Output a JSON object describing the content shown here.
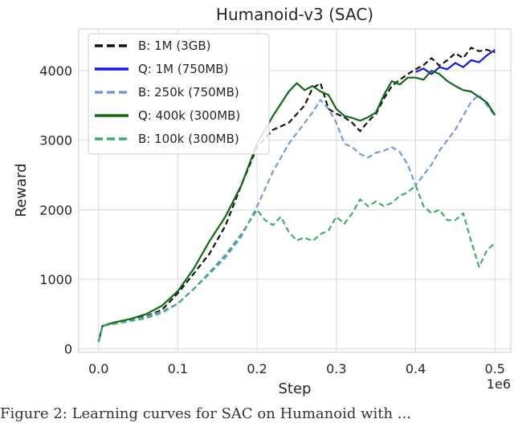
{
  "caption": "Figure 2: Learning curves for SAC on Humanoid with ...",
  "chart_data": {
    "type": "line",
    "title": "Humanoid-v3 (SAC)",
    "xlabel": "Step",
    "ylabel": "Reward",
    "x_multiplier_label": "1e6",
    "xlim": [
      -0.025,
      0.52
    ],
    "ylim": [
      -50,
      4600
    ],
    "xticks": [
      0.0,
      0.1,
      0.2,
      0.3,
      0.4,
      0.5
    ],
    "xtick_labels": [
      "0.0",
      "0.1",
      "0.2",
      "0.3",
      "0.4",
      "0.5"
    ],
    "yticks": [
      0,
      1000,
      2000,
      3000,
      4000
    ],
    "ytick_labels": [
      "0",
      "1000",
      "2000",
      "3000",
      "4000"
    ],
    "grid": true,
    "legend_position": "top-left",
    "series": [
      {
        "name": "B: 1M (3GB)",
        "color": "#111111",
        "dash": true,
        "points": [
          [
            0.0,
            100
          ],
          [
            0.005,
            330
          ],
          [
            0.02,
            380
          ],
          [
            0.04,
            420
          ],
          [
            0.06,
            470
          ],
          [
            0.08,
            560
          ],
          [
            0.1,
            800
          ],
          [
            0.12,
            1080
          ],
          [
            0.14,
            1370
          ],
          [
            0.16,
            1770
          ],
          [
            0.18,
            2350
          ],
          [
            0.2,
            2900
          ],
          [
            0.22,
            3150
          ],
          [
            0.24,
            3250
          ],
          [
            0.26,
            3500
          ],
          [
            0.27,
            3750
          ],
          [
            0.28,
            3820
          ],
          [
            0.29,
            3450
          ],
          [
            0.3,
            3380
          ],
          [
            0.31,
            3330
          ],
          [
            0.32,
            3250
          ],
          [
            0.33,
            3130
          ],
          [
            0.34,
            3270
          ],
          [
            0.35,
            3380
          ],
          [
            0.36,
            3600
          ],
          [
            0.37,
            3780
          ],
          [
            0.38,
            3870
          ],
          [
            0.39,
            3950
          ],
          [
            0.4,
            4020
          ],
          [
            0.41,
            4080
          ],
          [
            0.42,
            4180
          ],
          [
            0.43,
            4070
          ],
          [
            0.44,
            4150
          ],
          [
            0.45,
            4250
          ],
          [
            0.46,
            4180
          ],
          [
            0.47,
            4330
          ],
          [
            0.48,
            4280
          ],
          [
            0.49,
            4300
          ],
          [
            0.5,
            4260
          ]
        ]
      },
      {
        "name": "Q: 1M (750MB)",
        "color": "#1515e6",
        "dash": false,
        "points": [
          [
            0.4,
            3980
          ],
          [
            0.41,
            4030
          ],
          [
            0.42,
            3950
          ],
          [
            0.43,
            4050
          ],
          [
            0.44,
            4020
          ],
          [
            0.45,
            4110
          ],
          [
            0.46,
            4050
          ],
          [
            0.47,
            4150
          ],
          [
            0.48,
            4120
          ],
          [
            0.49,
            4220
          ],
          [
            0.5,
            4300
          ]
        ]
      },
      {
        "name": "B: 250k (750MB)",
        "color": "#6f9be6",
        "dash": true,
        "points": [
          [
            0.0,
            100
          ],
          [
            0.005,
            330
          ],
          [
            0.02,
            370
          ],
          [
            0.04,
            410
          ],
          [
            0.06,
            460
          ],
          [
            0.08,
            540
          ],
          [
            0.1,
            650
          ],
          [
            0.12,
            860
          ],
          [
            0.14,
            1080
          ],
          [
            0.16,
            1310
          ],
          [
            0.18,
            1610
          ],
          [
            0.2,
            2050
          ],
          [
            0.22,
            2550
          ],
          [
            0.24,
            2950
          ],
          [
            0.26,
            3250
          ],
          [
            0.27,
            3400
          ],
          [
            0.28,
            3580
          ],
          [
            0.29,
            3450
          ],
          [
            0.3,
            3250
          ],
          [
            0.31,
            2950
          ],
          [
            0.32,
            2900
          ],
          [
            0.33,
            2800
          ],
          [
            0.34,
            2750
          ],
          [
            0.35,
            2820
          ],
          [
            0.36,
            2850
          ],
          [
            0.37,
            2900
          ],
          [
            0.38,
            2830
          ],
          [
            0.39,
            2650
          ],
          [
            0.4,
            2350
          ],
          [
            0.41,
            2500
          ],
          [
            0.42,
            2650
          ],
          [
            0.43,
            2850
          ],
          [
            0.44,
            3000
          ],
          [
            0.45,
            3150
          ],
          [
            0.46,
            3350
          ],
          [
            0.47,
            3550
          ],
          [
            0.48,
            3650
          ],
          [
            0.49,
            3500
          ],
          [
            0.5,
            3350
          ]
        ]
      },
      {
        "name": "Q: 400k (300MB)",
        "color": "#0e6a10",
        "dash": false,
        "points": [
          [
            0.0,
            100
          ],
          [
            0.005,
            330
          ],
          [
            0.02,
            380
          ],
          [
            0.04,
            430
          ],
          [
            0.06,
            500
          ],
          [
            0.08,
            620
          ],
          [
            0.1,
            830
          ],
          [
            0.12,
            1150
          ],
          [
            0.14,
            1550
          ],
          [
            0.16,
            1900
          ],
          [
            0.18,
            2350
          ],
          [
            0.2,
            2950
          ],
          [
            0.22,
            3350
          ],
          [
            0.24,
            3700
          ],
          [
            0.25,
            3820
          ],
          [
            0.26,
            3720
          ],
          [
            0.27,
            3780
          ],
          [
            0.28,
            3700
          ],
          [
            0.29,
            3650
          ],
          [
            0.3,
            3450
          ],
          [
            0.31,
            3350
          ],
          [
            0.32,
            3320
          ],
          [
            0.33,
            3280
          ],
          [
            0.34,
            3330
          ],
          [
            0.35,
            3400
          ],
          [
            0.36,
            3650
          ],
          [
            0.37,
            3850
          ],
          [
            0.38,
            3800
          ],
          [
            0.39,
            3900
          ],
          [
            0.4,
            3900
          ],
          [
            0.41,
            3870
          ],
          [
            0.42,
            4000
          ],
          [
            0.43,
            3950
          ],
          [
            0.44,
            3850
          ],
          [
            0.45,
            3780
          ],
          [
            0.46,
            3720
          ],
          [
            0.47,
            3700
          ],
          [
            0.48,
            3620
          ],
          [
            0.49,
            3540
          ],
          [
            0.5,
            3360
          ]
        ]
      },
      {
        "name": "B: 100k (300MB)",
        "color": "#41ad6b",
        "dash": true,
        "points": [
          [
            0.0,
            100
          ],
          [
            0.005,
            330
          ],
          [
            0.02,
            360
          ],
          [
            0.04,
            400
          ],
          [
            0.06,
            440
          ],
          [
            0.08,
            520
          ],
          [
            0.1,
            650
          ],
          [
            0.12,
            860
          ],
          [
            0.14,
            1100
          ],
          [
            0.16,
            1350
          ],
          [
            0.18,
            1650
          ],
          [
            0.2,
            2000
          ],
          [
            0.21,
            1850
          ],
          [
            0.22,
            1780
          ],
          [
            0.23,
            1900
          ],
          [
            0.24,
            1680
          ],
          [
            0.25,
            1560
          ],
          [
            0.26,
            1600
          ],
          [
            0.27,
            1550
          ],
          [
            0.28,
            1650
          ],
          [
            0.29,
            1700
          ],
          [
            0.3,
            1900
          ],
          [
            0.31,
            1800
          ],
          [
            0.32,
            1950
          ],
          [
            0.33,
            2150
          ],
          [
            0.34,
            2050
          ],
          [
            0.35,
            2120
          ],
          [
            0.36,
            2050
          ],
          [
            0.37,
            2100
          ],
          [
            0.38,
            2200
          ],
          [
            0.39,
            2250
          ],
          [
            0.4,
            2350
          ],
          [
            0.41,
            2050
          ],
          [
            0.42,
            1950
          ],
          [
            0.43,
            2000
          ],
          [
            0.44,
            1850
          ],
          [
            0.45,
            1850
          ],
          [
            0.46,
            1950
          ],
          [
            0.47,
            1550
          ],
          [
            0.48,
            1180
          ],
          [
            0.49,
            1420
          ],
          [
            0.5,
            1520
          ]
        ]
      }
    ]
  }
}
